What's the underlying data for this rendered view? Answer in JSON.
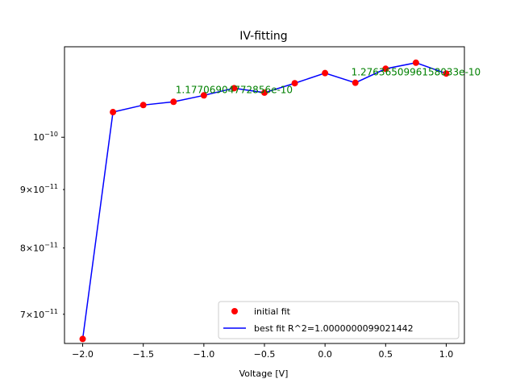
{
  "chart_data": {
    "type": "line",
    "title": "IV-fitting",
    "xlabel": "Voltage [V]",
    "ylabel": "",
    "yscale": "log",
    "xlim": [
      -2.15,
      1.15
    ],
    "ylim": [
      6.6e-11,
      1.2e-10
    ],
    "x_ticks": [
      -2.0,
      -1.5,
      -1.0,
      -0.5,
      0.0,
      0.5,
      1.0
    ],
    "x_tick_labels": [
      "−2.0",
      "−1.5",
      "−1.0",
      "−0.5",
      "0.0",
      "0.5",
      "1.0"
    ],
    "y_ticks": [
      7e-11,
      8e-11,
      9e-11,
      1e-10
    ],
    "y_tick_labels": [
      {
        "base": "7×10",
        "exp": "−11"
      },
      {
        "base": "8×10",
        "exp": "−11"
      },
      {
        "base": "9×10",
        "exp": "−11"
      },
      {
        "base": "10",
        "exp": "−10"
      }
    ],
    "x": [
      -2.0,
      -1.75,
      -1.5,
      -1.25,
      -1.0,
      -0.75,
      -0.5,
      -0.25,
      0.0,
      0.25,
      0.5,
      0.75,
      1.0
    ],
    "series": [
      {
        "name": "initial fit",
        "style": "markers",
        "color": "#ff0000",
        "values": [
          6.66e-11,
          1.052e-10,
          1.067e-10,
          1.074e-10,
          1.088e-10,
          1.104e-10,
          1.094e-10,
          1.115e-10,
          1.138e-10,
          1.116e-10,
          1.148e-10,
          1.162e-10,
          1.137e-10
        ]
      },
      {
        "name": "best fit R^2=1.0000000099021442",
        "style": "line",
        "color": "#0000ff",
        "values": [
          6.66e-11,
          1.052e-10,
          1.067e-10,
          1.074e-10,
          1.088e-10,
          1.104e-10,
          1.094e-10,
          1.115e-10,
          1.138e-10,
          1.116e-10,
          1.148e-10,
          1.162e-10,
          1.137e-10
        ]
      }
    ],
    "annotations": [
      {
        "text": "1.17706904772856e-10",
        "x": -0.75,
        "y": 1.1e-10,
        "color": "#008000"
      },
      {
        "text": "1.2763650996158033e-10",
        "x": 0.75,
        "y": 1.14e-10,
        "color": "#008000"
      }
    ],
    "legend_placement": "lower-right",
    "grid": false
  }
}
